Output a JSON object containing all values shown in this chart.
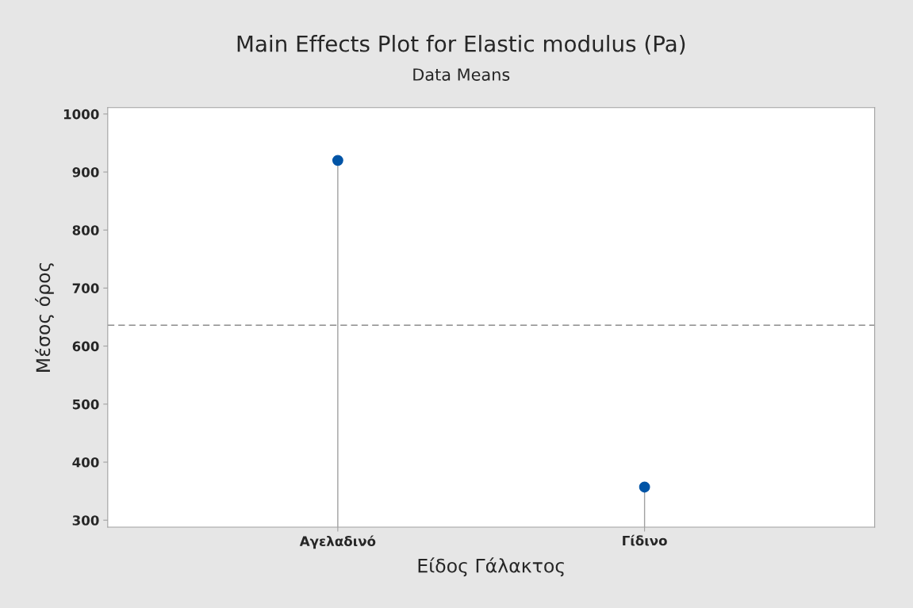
{
  "chart_data": {
    "type": "lollipop",
    "title": "Main Effects Plot for Elastic modulus (Pa)",
    "subtitle": "Data Means",
    "xlabel": "Είδος Γάλακτος",
    "ylabel": "Μέσος όρος",
    "categories": [
      "Αγελαδινό",
      "Γίδινο"
    ],
    "series": [
      {
        "color": "#0054a6",
        "values": [
          920,
          357
        ]
      }
    ],
    "ylim": [
      288,
      1011
    ],
    "yticks": [
      300,
      400,
      500,
      600,
      700,
      800,
      900,
      1000
    ],
    "ref_lines": [
      {
        "axis": "y",
        "value": 636,
        "color": "#8c8c8c",
        "line_style": "dashed"
      }
    ],
    "marker": "circle",
    "legend": false
  }
}
